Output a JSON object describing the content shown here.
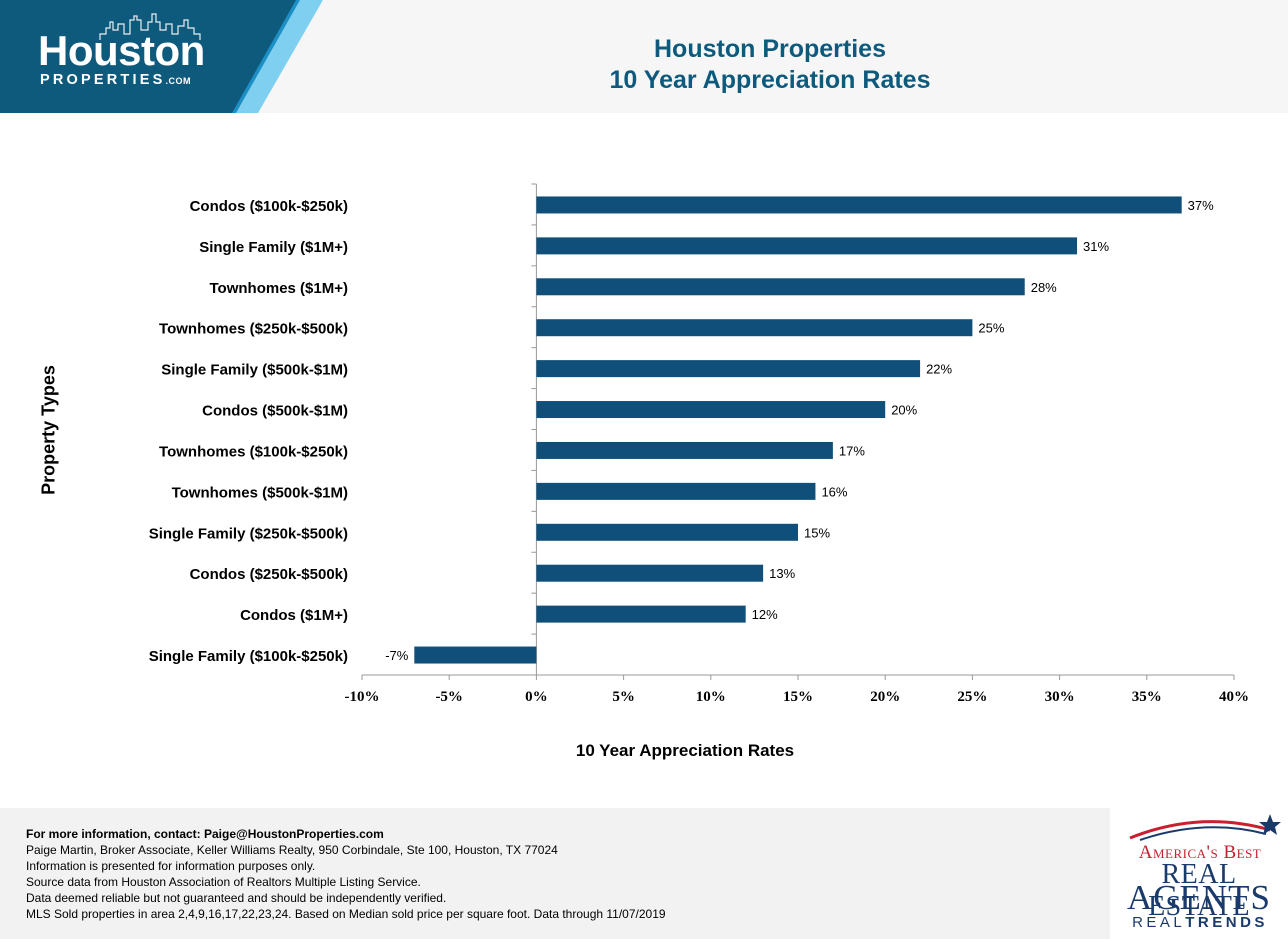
{
  "header": {
    "logo_main": "Houston",
    "logo_sub": "PROPERTIES",
    "logo_com": ".COM",
    "title_line1": "Houston Properties",
    "title_line2": "10 Year Appreciation Rates"
  },
  "colors": {
    "bar": "#0f4f79",
    "title": "#0e5a7d",
    "logo_bg": "#0e5a7d",
    "logo_accent_1": "#1c8fc4",
    "logo_accent_2": "#7fd0f0"
  },
  "chart_data": {
    "type": "bar",
    "orientation": "horizontal",
    "categories": [
      "Condos ($100k-$250k)",
      "Single Family ($1M+)",
      "Townhomes ($1M+)",
      "Townhomes ($250k-$500k)",
      "Single Family ($500k-$1M)",
      "Condos ($500k-$1M)",
      "Townhomes ($100k-$250k)",
      "Townhomes ($500k-$1M)",
      "Single Family ($250k-$500k)",
      "Condos ($250k-$500k)",
      "Condos ($1M+)",
      "Single Family ($100k-$250k)"
    ],
    "values": [
      37,
      31,
      28,
      25,
      22,
      20,
      17,
      16,
      15,
      13,
      12,
      -7
    ],
    "data_labels": [
      "37%",
      "31%",
      "28%",
      "25%",
      "22%",
      "20%",
      "17%",
      "16%",
      "15%",
      "13%",
      "12%",
      "-7%"
    ],
    "xlim": [
      -10,
      40
    ],
    "xticks": [
      -10,
      -5,
      0,
      5,
      10,
      15,
      20,
      25,
      30,
      35,
      40
    ],
    "xtick_labels": [
      "-10%",
      "-5%",
      "0%",
      "5%",
      "10%",
      "15%",
      "20%",
      "25%",
      "30%",
      "35%",
      "40%"
    ],
    "xlabel": "10 Year Appreciation Rates",
    "ylabel": "Property Types",
    "grid": false,
    "legend": "none"
  },
  "footer": {
    "contact": "For more information, contact: Paige@HoustonProperties.com",
    "line1": "Paige Martin, Broker Associate, Keller Williams Realty, 950 Corbindale, Ste 100, Houston, TX 77024",
    "line2": "Information is presented for information purposes only.",
    "line3": "Source data from Houston Association of Realtors Multiple Listing Service.",
    "line4": "Data deemed reliable but not guaranteed and should be independently verified.",
    "line5": "MLS Sold properties in area 2,4,9,16,17,22,23,24. Based on Median sold price per square foot. Data through 11/07/2019"
  },
  "badge": {
    "line1": "America's Best",
    "line2": "REAL ESTATE",
    "line3": "AGENTS",
    "line4_a": "REAL",
    "line4_b": "TRENDS"
  }
}
